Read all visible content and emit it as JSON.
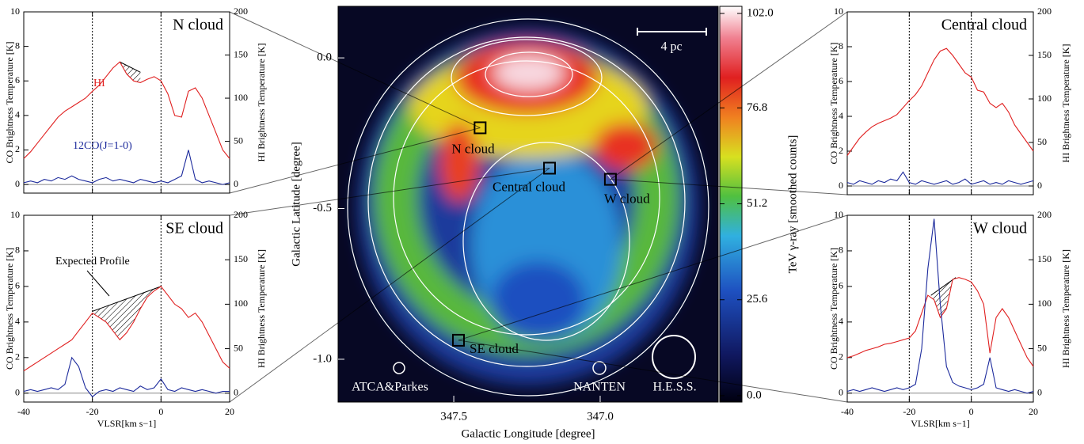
{
  "chart_data": [
    {
      "type": "line",
      "title": "N cloud",
      "ylabel": "CO Brightness Temperature [K]",
      "y2label": "HI Brightness Temperature [K]",
      "x": [
        -40,
        -38,
        -36,
        -34,
        -32,
        -30,
        -28,
        -26,
        -24,
        -22,
        -20,
        -18,
        -16,
        -14,
        -12,
        -10,
        -8,
        -6,
        -4,
        -2,
        0,
        2,
        4,
        6,
        8,
        10,
        12,
        14,
        16,
        18,
        20
      ],
      "series": [
        {
          "name": "HI",
          "color": "#e02020",
          "axis": "y2",
          "values": [
            30,
            38,
            48,
            58,
            68,
            78,
            85,
            90,
            95,
            100,
            108,
            115,
            125,
            135,
            142,
            128,
            120,
            118,
            122,
            125,
            120,
            105,
            80,
            78,
            108,
            112,
            100,
            80,
            60,
            40,
            30
          ]
        },
        {
          "name": "12CO(J=1-0)",
          "color": "#1c2a9c",
          "values": [
            0.1,
            0.2,
            0.1,
            0.3,
            0.2,
            0.4,
            0.3,
            0.5,
            0.3,
            0.2,
            0.1,
            0.3,
            0.4,
            0.2,
            0.3,
            0.2,
            0.1,
            0.3,
            0.2,
            0.1,
            0.2,
            0.1,
            0.3,
            0.5,
            2.0,
            0.3,
            0.1,
            0.2,
            0.1,
            0.0,
            0.1
          ]
        }
      ],
      "expected_profile": {
        "x": [
          -12,
          -6
        ],
        "values": [
          142,
          130
        ]
      },
      "xlim": [
        -40,
        20
      ],
      "xticks": [
        -40,
        -20,
        0,
        20
      ],
      "show_xtick_labels": false,
      "ylim": [
        -0.5,
        10
      ],
      "yticks": [
        0,
        2,
        4,
        6,
        8,
        10
      ],
      "y2lim": [
        -10,
        200
      ],
      "y2ticks": [
        0,
        50,
        100,
        150,
        200
      ],
      "vlines": [
        -20,
        0
      ],
      "hline": 0
    },
    {
      "type": "line",
      "title": "SE cloud",
      "xlabel": "VLSR[km s−1]",
      "ylabel": "CO Brightness Temperature [K]",
      "y2label": "HI Brightness Temperature [K]",
      "annotation": "Expected Profile",
      "x": [
        -40,
        -38,
        -36,
        -34,
        -32,
        -30,
        -28,
        -26,
        -24,
        -22,
        -20,
        -18,
        -16,
        -14,
        -12,
        -10,
        -8,
        -6,
        -4,
        -2,
        0,
        2,
        4,
        6,
        8,
        10,
        12,
        14,
        16,
        18,
        20
      ],
      "series": [
        {
          "name": "HI",
          "color": "#e02020",
          "axis": "y2",
          "values": [
            25,
            30,
            35,
            40,
            45,
            50,
            55,
            60,
            70,
            80,
            90,
            85,
            80,
            70,
            60,
            68,
            80,
            95,
            108,
            115,
            120,
            110,
            100,
            95,
            85,
            90,
            80,
            65,
            50,
            35,
            28
          ]
        },
        {
          "name": "12CO(J=1-0)",
          "color": "#1c2a9c",
          "values": [
            0.1,
            0.2,
            0.1,
            0.2,
            0.3,
            0.2,
            0.5,
            2.0,
            1.5,
            0.3,
            -0.2,
            0.1,
            0.2,
            0.1,
            0.3,
            0.2,
            0.1,
            0.4,
            0.2,
            0.3,
            0.8,
            0.2,
            0.1,
            0.3,
            0.2,
            0.1,
            0.2,
            0.1,
            0.0,
            0.1,
            0.1
          ]
        }
      ],
      "expected_profile": {
        "x": [
          -20,
          0
        ],
        "values": [
          92,
          120
        ]
      },
      "xlim": [
        -40,
        20
      ],
      "xticks": [
        -40,
        -20,
        0,
        20
      ],
      "show_xtick_labels": true,
      "ylim": [
        -0.5,
        10
      ],
      "yticks": [
        0,
        2,
        4,
        6,
        8,
        10
      ],
      "y2lim": [
        -10,
        200
      ],
      "y2ticks": [
        0,
        50,
        100,
        150,
        200
      ],
      "vlines": [
        -20,
        0
      ],
      "hline": 0
    },
    {
      "type": "map",
      "xlabel": "Galactic Longitude [degree]",
      "ylabel": "Galactic Latitude [degree]",
      "xlim": [
        347.895,
        346.597
      ],
      "xticks": [
        347.5,
        {
          "value": 347,
          "label": "347.0"
        }
      ],
      "ylim": [
        -1.142,
        0.171
      ],
      "yticks": [
        {
          "value": 0,
          "label": "0.0"
        },
        -0.5,
        {
          "value": -1,
          "label": "-1.0"
        }
      ],
      "colorbar": {
        "label": "TeV γ-ray [smoothed counts]",
        "lim": [
          -1.7,
          103.9
        ],
        "ticks": [
          {
            "value": 0,
            "label": "0.0"
          },
          25.6,
          51.2,
          76.8,
          {
            "value": 102,
            "label": "102.0"
          }
        ]
      },
      "regions": [
        {
          "name": "N cloud",
          "l": 347.41,
          "b": -0.232
        },
        {
          "name": "Central cloud",
          "l": 347.173,
          "b": -0.366
        },
        {
          "name": "W cloud",
          "l": 346.965,
          "b": -0.403
        },
        {
          "name": "SE cloud",
          "l": 347.484,
          "b": -0.937
        }
      ],
      "beams": [
        "ATCA&Parkes",
        "NANTEN",
        "H.E.S.S."
      ],
      "scale_bar": "4 pc"
    },
    {
      "type": "line",
      "title": "Central cloud",
      "ylabel": "CO Brightness Temperature [K]",
      "y2label": "HI Brightness Temperature [K]",
      "x": [
        -40,
        -38,
        -36,
        -34,
        -32,
        -30,
        -28,
        -26,
        -24,
        -22,
        -20,
        -18,
        -16,
        -14,
        -12,
        -10,
        -8,
        -6,
        -4,
        -2,
        0,
        2,
        4,
        6,
        8,
        10,
        12,
        14,
        16,
        18,
        20
      ],
      "series": [
        {
          "name": "HI",
          "color": "#e02020",
          "axis": "y2",
          "values": [
            35,
            45,
            55,
            62,
            68,
            72,
            75,
            78,
            82,
            90,
            98,
            105,
            115,
            130,
            145,
            155,
            158,
            150,
            140,
            130,
            125,
            110,
            108,
            95,
            90,
            95,
            85,
            70,
            60,
            50,
            40
          ]
        },
        {
          "name": "12CO(J=1-0)",
          "color": "#1c2a9c",
          "values": [
            0.2,
            0.1,
            0.3,
            0.2,
            0.1,
            0.3,
            0.2,
            0.4,
            0.3,
            0.8,
            0.2,
            0.1,
            0.3,
            0.2,
            0.1,
            0.2,
            0.3,
            0.1,
            0.2,
            0.4,
            0.1,
            0.2,
            0.3,
            0.1,
            0.2,
            0.1,
            0.3,
            0.2,
            0.1,
            0.2,
            0.3
          ]
        }
      ],
      "xlim": [
        -40,
        20
      ],
      "xticks": [
        -40,
        -20,
        0,
        20
      ],
      "show_xtick_labels": false,
      "ylim": [
        -0.5,
        10
      ],
      "yticks": [
        0,
        2,
        4,
        6,
        8,
        10
      ],
      "y2lim": [
        -10,
        200
      ],
      "y2ticks": [
        0,
        50,
        100,
        150,
        200
      ],
      "vlines": [
        -20,
        0
      ],
      "hline": 0
    },
    {
      "type": "line",
      "title": "W cloud",
      "xlabel": "VLSR[km s−1]",
      "ylabel": "CO Brightness Temperature [K]",
      "y2label": "HI Brightness Temperature [K]",
      "x": [
        -40,
        -38,
        -36,
        -34,
        -32,
        -30,
        -28,
        -26,
        -24,
        -22,
        -20,
        -18,
        -16,
        -14,
        -12,
        -10,
        -8,
        -6,
        -4,
        -2,
        0,
        2,
        4,
        6,
        8,
        10,
        12,
        14,
        16,
        18,
        20
      ],
      "series": [
        {
          "name": "HI",
          "color": "#e02020",
          "axis": "y2",
          "values": [
            40,
            42,
            45,
            48,
            50,
            52,
            55,
            56,
            58,
            60,
            62,
            70,
            90,
            110,
            105,
            85,
            95,
            128,
            130,
            128,
            125,
            115,
            100,
            45,
            85,
            95,
            85,
            70,
            55,
            40,
            30
          ]
        },
        {
          "name": "12CO(J=1-0)",
          "color": "#1c2a9c",
          "values": [
            0.1,
            0.2,
            0.1,
            0.2,
            0.3,
            0.2,
            0.1,
            0.2,
            0.3,
            0.2,
            0.3,
            0.5,
            2.5,
            7.0,
            9.8,
            5.0,
            1.5,
            0.6,
            0.4,
            0.3,
            0.2,
            0.3,
            0.5,
            2.0,
            0.3,
            0.2,
            0.1,
            0.2,
            0.1,
            0.0,
            0.1
          ]
        }
      ],
      "expected_profile": {
        "x": [
          -13,
          -5
        ],
        "values": [
          110,
          130
        ]
      },
      "xlim": [
        -40,
        20
      ],
      "xticks": [
        -40,
        -20,
        0,
        20
      ],
      "show_xtick_labels": true,
      "ylim": [
        -0.5,
        10
      ],
      "yticks": [
        0,
        2,
        4,
        6,
        8,
        10
      ],
      "y2lim": [
        -10,
        200
      ],
      "y2ticks": [
        0,
        50,
        100,
        150,
        200
      ],
      "vlines": [
        -20,
        0
      ],
      "hline": 0
    }
  ]
}
